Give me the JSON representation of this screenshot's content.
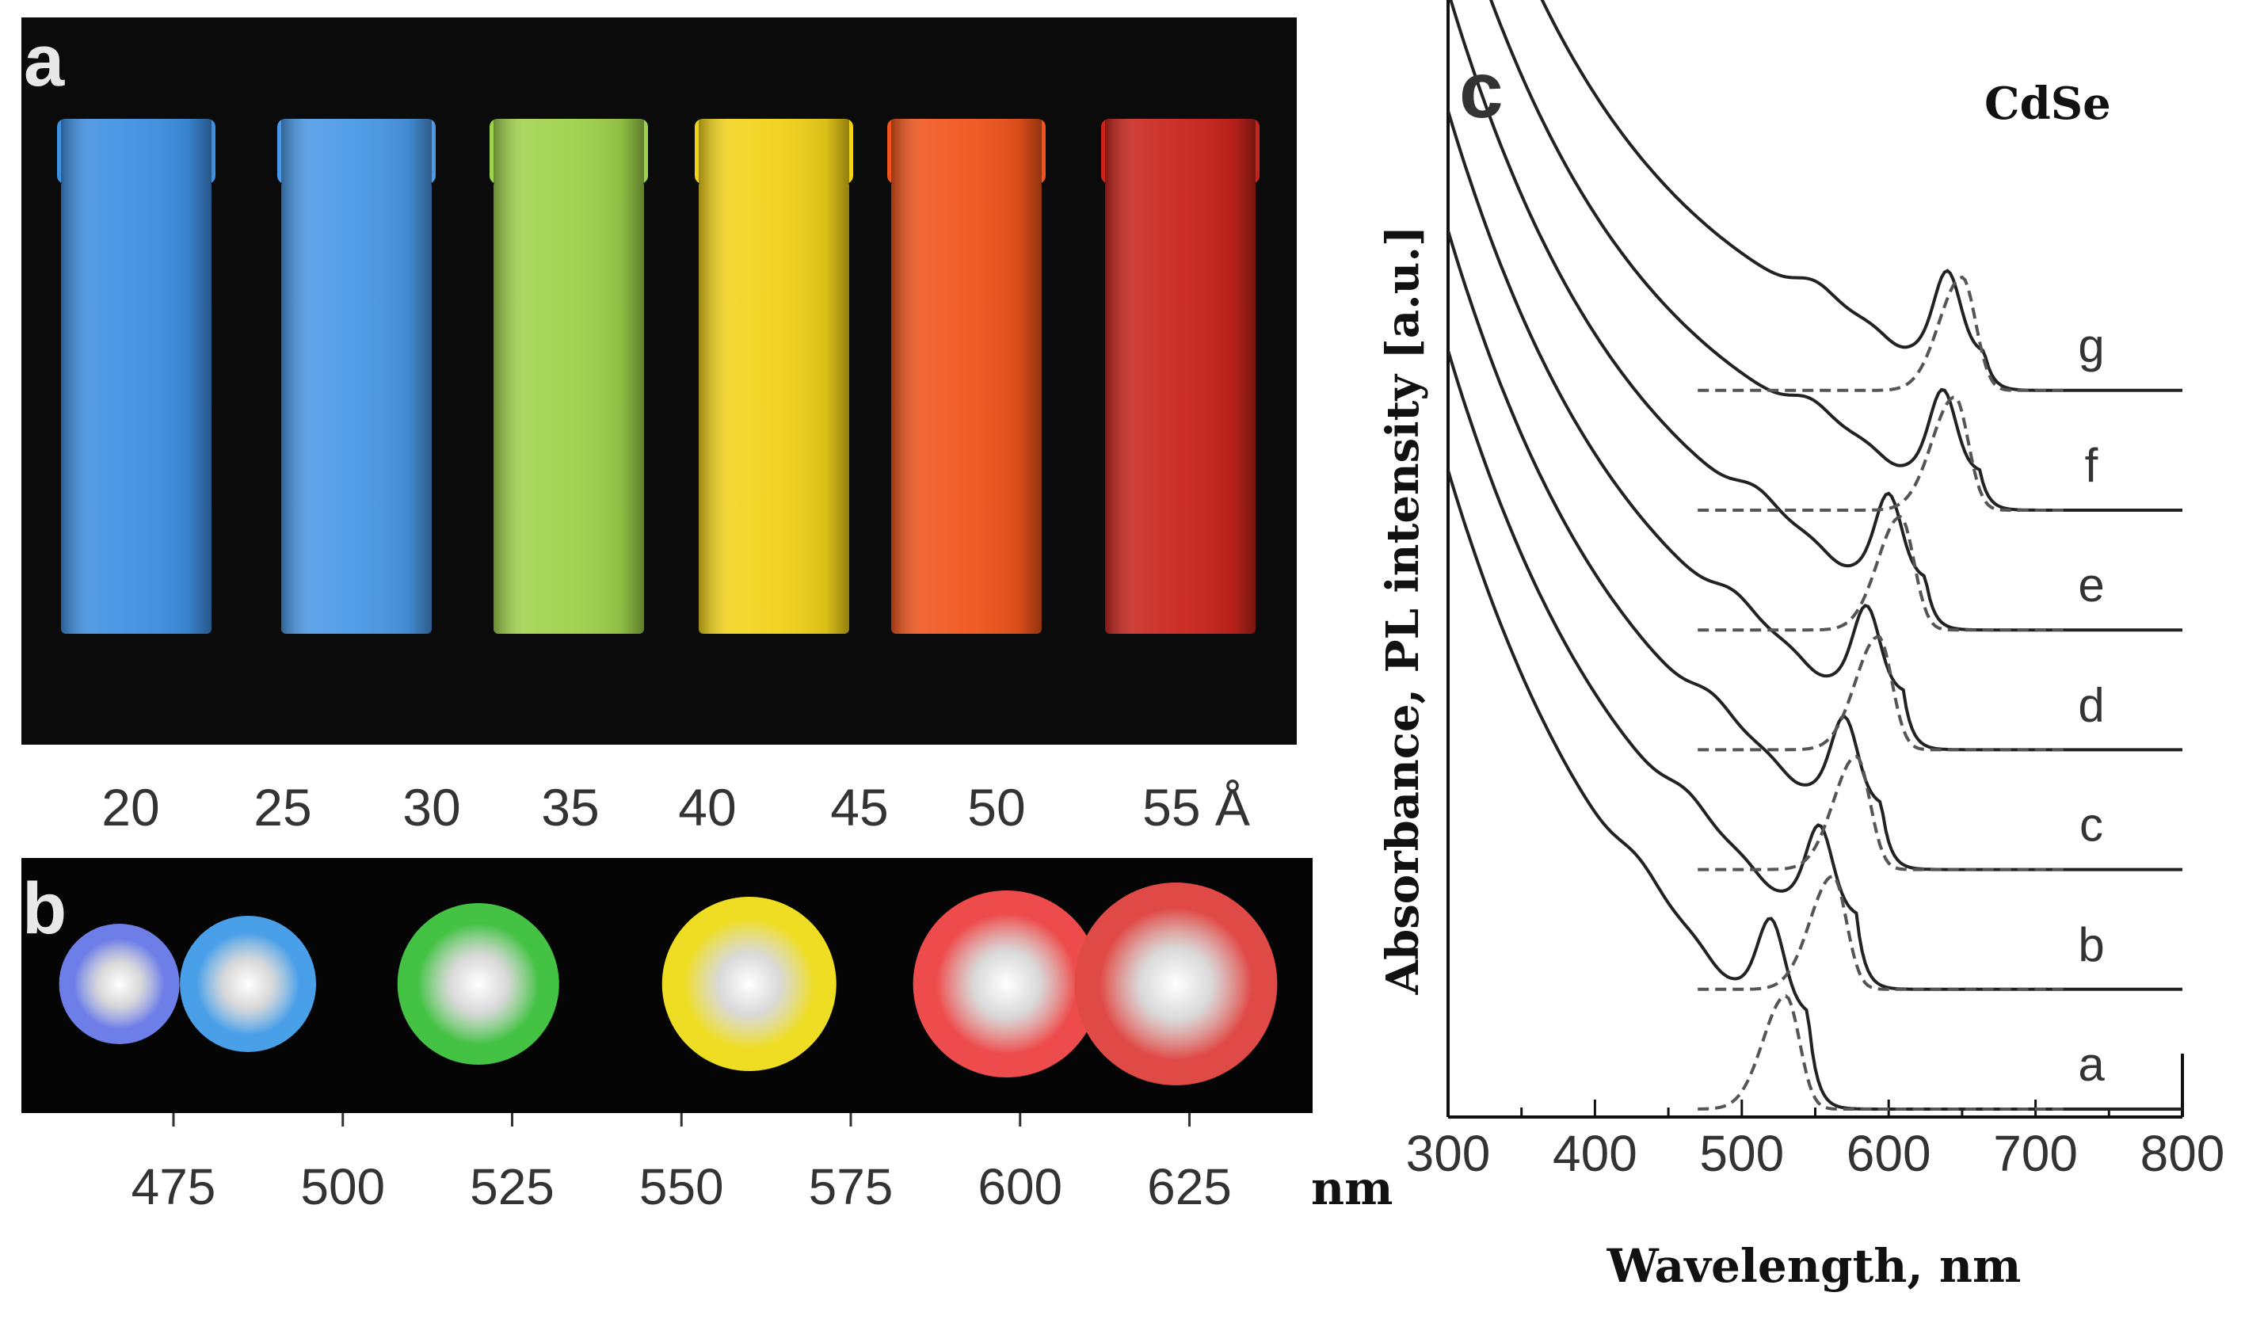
{
  "panels": {
    "a": {
      "label": "a",
      "vial_colors": [
        "#3f8fe2",
        "#4a98e6",
        "#9fd24c",
        "#f2d21a",
        "#f0541c",
        "#c8241c"
      ],
      "sizes": [
        "20",
        "25",
        "30",
        "35",
        "40",
        "45",
        "50",
        "55 Å"
      ]
    },
    "b": {
      "label": "b",
      "dots": [
        {
          "color": "#6e7ee8",
          "wavelength": 467
        },
        {
          "color": "#4aa0e8",
          "wavelength": 486
        },
        {
          "color": "#44c244",
          "wavelength": 520
        },
        {
          "color": "#eedd22",
          "wavelength": 560
        },
        {
          "color": "#ee4c4c",
          "wavelength": 598
        },
        {
          "color": "#e04a46",
          "wavelength": 623
        }
      ],
      "ticks": [
        "475",
        "500",
        "525",
        "550",
        "575",
        "600",
        "625"
      ],
      "unit": "nm"
    },
    "c": {
      "label": "c",
      "title": "CdSe",
      "ylabel": "Absorbance, PL intensity [a.u.]",
      "xlabel": "Wavelength, nm"
    }
  },
  "chart_data": {
    "type": "line",
    "title": "CdSe",
    "xlabel": "Wavelength, nm",
    "ylabel": "Absorbance, PL intensity [a.u.]",
    "xlim": [
      300,
      800
    ],
    "xticks": [
      "300",
      "400",
      "500",
      "600",
      "700",
      "800"
    ],
    "grid": false,
    "series": [
      {
        "name": "a",
        "offset": 0.0,
        "abs_peak": 520,
        "pl_peak": 530
      },
      {
        "name": "b",
        "offset": 0.9,
        "abs_peak": 553,
        "pl_peak": 562
      },
      {
        "name": "c",
        "offset": 1.8,
        "abs_peak": 570,
        "pl_peak": 578
      },
      {
        "name": "d",
        "offset": 2.7,
        "abs_peak": 585,
        "pl_peak": 593
      },
      {
        "name": "e",
        "offset": 3.6,
        "abs_peak": 600,
        "pl_peak": 608
      },
      {
        "name": "f",
        "offset": 4.5,
        "abs_peak": 637,
        "pl_peak": 645
      },
      {
        "name": "g",
        "offset": 5.4,
        "abs_peak": 640,
        "pl_peak": 650
      }
    ]
  }
}
